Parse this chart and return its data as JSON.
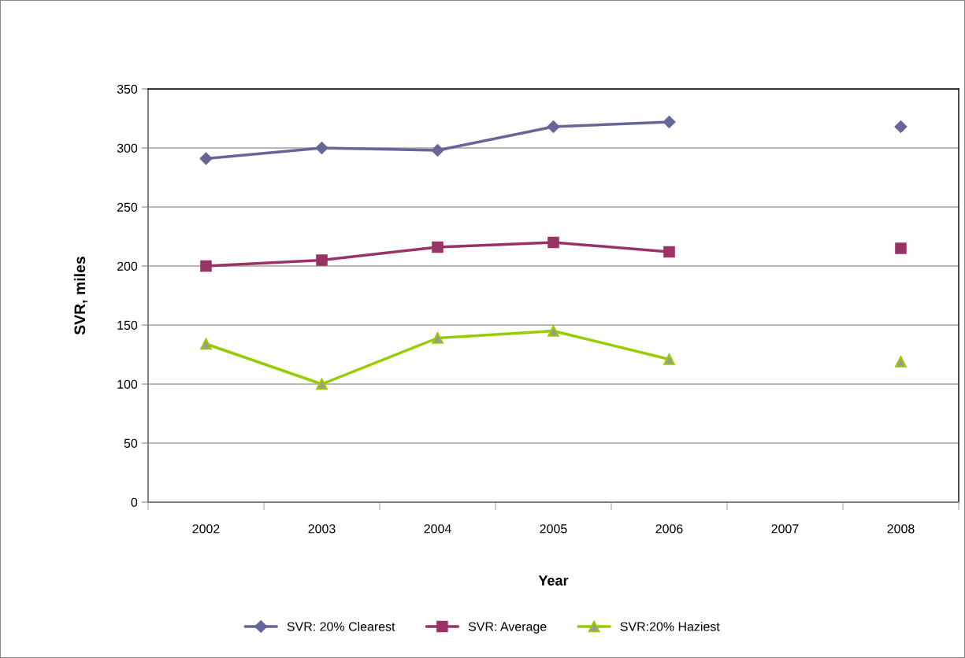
{
  "chart_data": {
    "type": "line",
    "xlabel": "Year",
    "ylabel": "SVR, miles",
    "categories": [
      "2002",
      "2003",
      "2004",
      "2005",
      "2006",
      "2007",
      "2008"
    ],
    "series": [
      {
        "name": "SVR: 20% Clearest",
        "color": "#666699",
        "marker": "diamond",
        "values": [
          291,
          300,
          298,
          318,
          322,
          null,
          318
        ]
      },
      {
        "name": "SVR: Average",
        "color": "#993366",
        "marker": "square",
        "values": [
          200,
          205,
          216,
          220,
          212,
          null,
          215
        ]
      },
      {
        "name": "SVR:20% Haziest",
        "color": "#99cc00",
        "marker": "triangle",
        "values": [
          134,
          100,
          139,
          145,
          121,
          null,
          119
        ]
      }
    ],
    "ylim": [
      0,
      350
    ],
    "yticks": [
      0,
      50,
      100,
      150,
      200,
      250,
      300,
      350
    ],
    "grid": "y",
    "legend": "bottom",
    "line_style": "solid"
  }
}
